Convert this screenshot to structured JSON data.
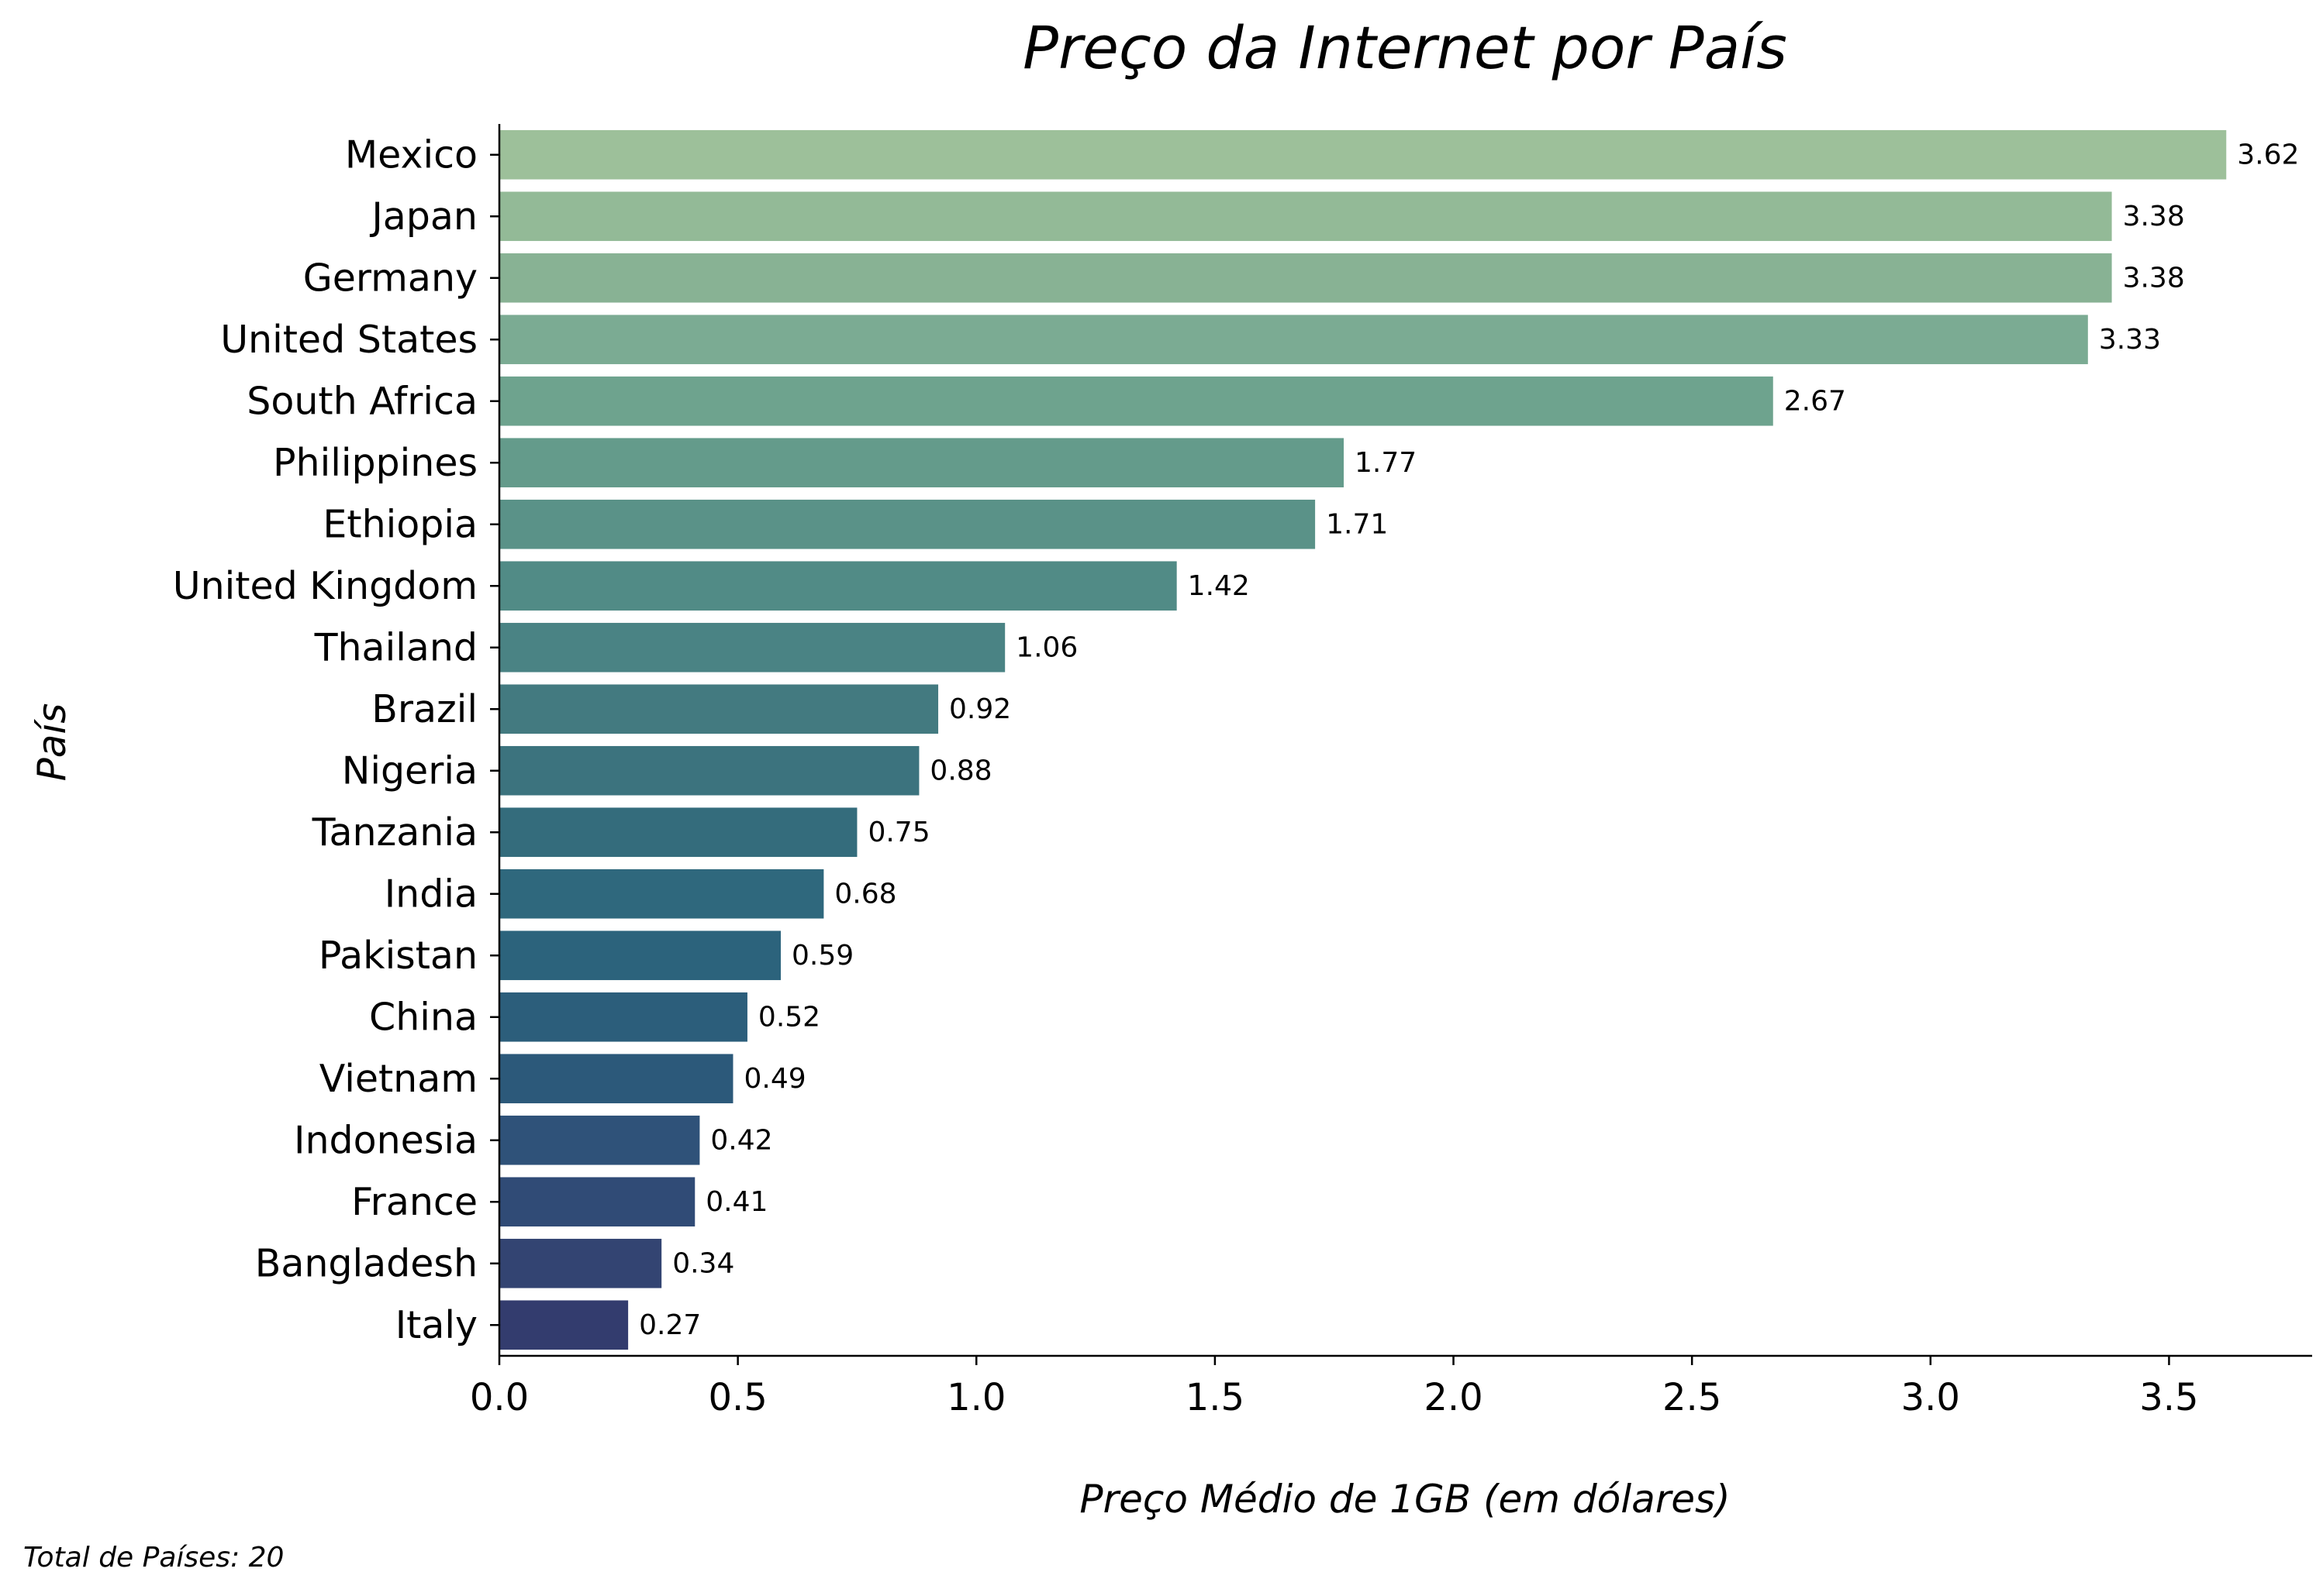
{
  "chart_data": {
    "type": "bar",
    "orientation": "horizontal",
    "title": "Preço da Internet por País",
    "xlabel": "Preço Médio de 1GB (em dólares)",
    "ylabel": "País",
    "categories": [
      "Mexico",
      "Japan",
      "Germany",
      "United States",
      "South Africa",
      "Philippines",
      "Ethiopia",
      "United Kingdom",
      "Thailand",
      "Brazil",
      "Nigeria",
      "Tanzania",
      "India",
      "Pakistan",
      "China",
      "Vietnam",
      "Indonesia",
      "France",
      "Bangladesh",
      "Italy"
    ],
    "values": [
      3.62,
      3.38,
      3.38,
      3.33,
      2.67,
      1.77,
      1.71,
      1.42,
      1.06,
      0.92,
      0.88,
      0.75,
      0.68,
      0.59,
      0.52,
      0.49,
      0.42,
      0.41,
      0.34,
      0.27
    ],
    "value_labels": [
      "3.62",
      "3.38",
      "3.38",
      "3.33",
      "2.67",
      "1.77",
      "1.71",
      "1.42",
      "1.06",
      "0.92",
      "0.88",
      "0.75",
      "0.68",
      "0.59",
      "0.52",
      "0.49",
      "0.42",
      "0.41",
      "0.34",
      "0.27"
    ],
    "xlim": [
      0,
      3.8
    ],
    "xticks": [
      0.0,
      0.5,
      1.0,
      1.5,
      2.0,
      2.5,
      3.0,
      3.5
    ],
    "xtick_labels": [
      "0.0",
      "0.5",
      "1.0",
      "1.5",
      "2.0",
      "2.5",
      "3.0",
      "3.5"
    ],
    "grid": false,
    "colors": [
      "#9dc09a",
      "#93ba97",
      "#88b294",
      "#7bab93",
      "#6ea38e",
      "#649b8b",
      "#5a9288",
      "#518b86",
      "#4a8384",
      "#437a80",
      "#3c737e",
      "#346c7c",
      "#2f687d",
      "#2c637c",
      "#2c5e7b",
      "#2c597a",
      "#2f5279",
      "#304b76",
      "#334472",
      "#333c6e"
    ]
  },
  "footer": {
    "note": "Total de Países: 20"
  }
}
